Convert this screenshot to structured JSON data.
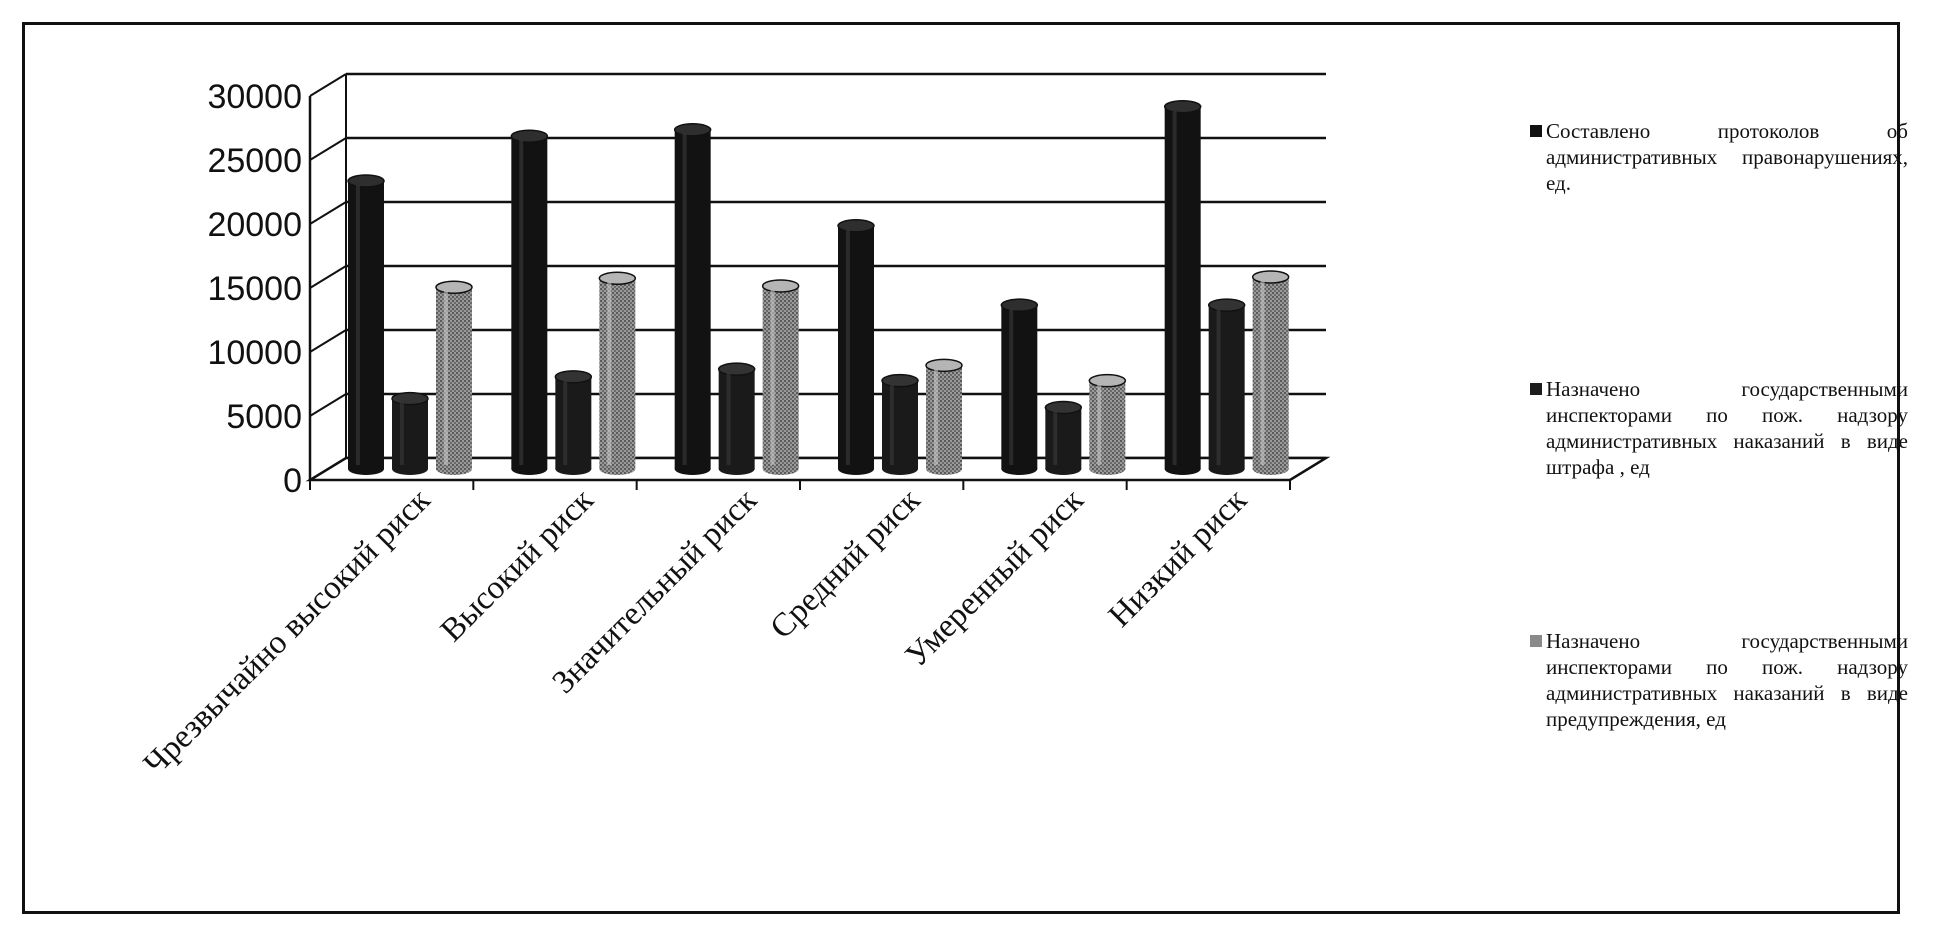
{
  "chart_data": {
    "type": "bar",
    "title": "",
    "xlabel": "",
    "ylabel": "",
    "ylim": [
      0,
      30000
    ],
    "yticks": [
      "0",
      "5000",
      "10000",
      "15000",
      "20000",
      "25000",
      "30000"
    ],
    "categories": [
      "Чрезвычайно высокий риск",
      "Высокий риск",
      "Значительный риск",
      "Средний риск",
      "Умеренный риск",
      "Низкий риск"
    ],
    "series": [
      {
        "name": "Составлено протоколов об административных правонарушениях, ед.",
        "color": "#111111",
        "values": [
          22500,
          26000,
          26500,
          19000,
          12800,
          28300
        ]
      },
      {
        "name": "Назначено государственными инспекторами по пож. надзору административных наказаний в виде штрафа , ед",
        "color": "#1c1c1c",
        "values": [
          5500,
          7200,
          7800,
          6900,
          4800,
          12800
        ]
      },
      {
        "name": "Назначено государственными инспекторами по пож. надзору административных наказаний в виде предупреждения, ед",
        "color": "#8a8a8a",
        "values": [
          14200,
          14900,
          14300,
          8100,
          6900,
          15000
        ]
      }
    ],
    "grid": true,
    "legend_position": "right"
  }
}
